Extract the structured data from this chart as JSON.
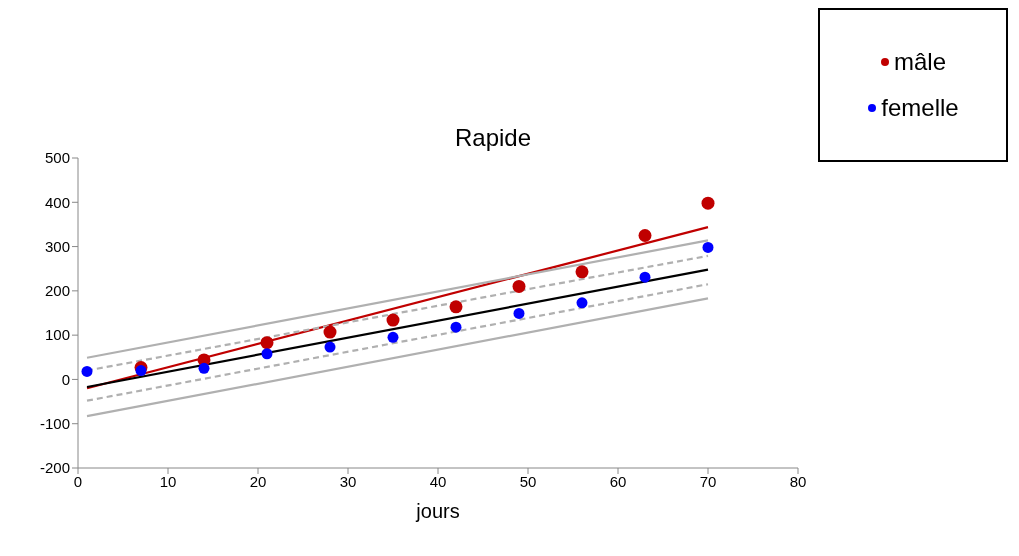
{
  "chart_data": {
    "type": "scatter",
    "title": "Rapide",
    "xlabel": "jours",
    "xlim": [
      0,
      80
    ],
    "xticks": [
      0,
      10,
      20,
      30,
      40,
      50,
      60,
      70,
      80
    ],
    "ylim": [
      -200,
      500
    ],
    "yticks": [
      -200,
      -100,
      0,
      100,
      200,
      300,
      400,
      500
    ],
    "grid": false,
    "legend": "top right",
    "marker": "circle",
    "series": [
      {
        "name": "mâle",
        "color": "#c00000",
        "x": [
          7,
          14,
          21,
          28,
          35,
          42,
          49,
          56,
          63,
          70
        ],
        "values": [
          27,
          44,
          83,
          107,
          134,
          164,
          210,
          243,
          325,
          398
        ]
      },
      {
        "name": "femelle",
        "color": "#0000ff",
        "x": [
          1,
          7,
          14,
          21,
          28,
          35,
          42,
          49,
          56,
          63,
          70
        ],
        "values": [
          18,
          20,
          25,
          58,
          73,
          95,
          118,
          149,
          173,
          231,
          298
        ]
      },
      {
        "type": "line",
        "marker": "none",
        "color": "#c00000",
        "x": [
          1,
          70
        ],
        "values": [
          -20,
          344
        ]
      },
      {
        "type": "line",
        "marker": "none",
        "color": "#000000",
        "x": [
          1,
          70
        ],
        "values": [
          -17,
          248
        ]
      },
      {
        "type": "line",
        "marker": "none",
        "color": "#b0b0b0",
        "x": [
          1,
          70
        ],
        "values": [
          49,
          314
        ]
      },
      {
        "type": "line",
        "marker": "none",
        "color": "#b0b0b0",
        "x": [
          1,
          70
        ],
        "values": [
          -83,
          183
        ]
      },
      {
        "type": "line",
        "marker": "none",
        "color": "#b0b0b0",
        "line_style": "dashed",
        "x": [
          1,
          70
        ],
        "values": [
          20,
          279
        ]
      },
      {
        "type": "line",
        "marker": "none",
        "color": "#b0b0b0",
        "line_style": "dashed",
        "x": [
          1,
          70
        ],
        "values": [
          -48,
          215
        ]
      }
    ]
  }
}
